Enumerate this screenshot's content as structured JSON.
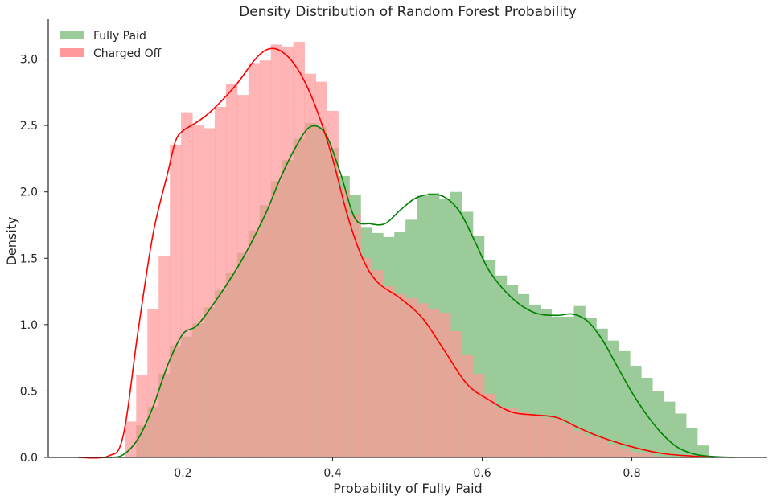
{
  "chart_data": {
    "type": "histogram",
    "title": "Density Distribution of Random Forest Probability",
    "xlabel": "Probability of Fully Paid",
    "ylabel": "Density",
    "xlim": [
      0.02,
      0.98
    ],
    "ylim": [
      0.0,
      3.3
    ],
    "xticks": [
      0.2,
      0.4,
      0.6,
      0.8
    ],
    "yticks": [
      0.0,
      0.5,
      1.0,
      1.5,
      2.0,
      2.5,
      3.0
    ],
    "xtick_labels": [
      "0.2",
      "0.4",
      "0.6",
      "0.8"
    ],
    "ytick_labels": [
      "0.0",
      "0.5",
      "1.0",
      "1.5",
      "2.0",
      "2.5",
      "3.0"
    ],
    "grid": false,
    "legend_position": "top-left",
    "bin_width": 0.015,
    "series": [
      {
        "name": "Fully Paid",
        "color": "#008000",
        "bar_color": "#9bcb98",
        "bins_start": 0.1375,
        "values": [
          0.24,
          0.38,
          0.63,
          0.84,
          0.91,
          1.01,
          1.13,
          1.26,
          1.39,
          1.54,
          1.71,
          1.9,
          2.08,
          2.24,
          2.4,
          2.52,
          2.49,
          2.33,
          2.12,
          1.98,
          1.73,
          1.69,
          1.66,
          1.7,
          1.79,
          1.97,
          1.99,
          1.95,
          2.0,
          1.85,
          1.67,
          1.49,
          1.37,
          1.3,
          1.23,
          1.15,
          1.12,
          1.06,
          1.06,
          1.14,
          1.05,
          0.97,
          0.88,
          0.8,
          0.69,
          0.6,
          0.5,
          0.42,
          0.33,
          0.22,
          0.09
        ],
        "kde_x": [
          0.06,
          0.1,
          0.12,
          0.14,
          0.16,
          0.18,
          0.2,
          0.22,
          0.25,
          0.28,
          0.31,
          0.33,
          0.35,
          0.37,
          0.39,
          0.41,
          0.43,
          0.45,
          0.47,
          0.49,
          0.51,
          0.53,
          0.55,
          0.57,
          0.59,
          0.61,
          0.64,
          0.67,
          0.7,
          0.72,
          0.74,
          0.76,
          0.78,
          0.8,
          0.82,
          0.84,
          0.86,
          0.88,
          0.9,
          0.935
        ],
        "kde_y": [
          0.0,
          0.0,
          0.02,
          0.14,
          0.38,
          0.7,
          0.93,
          1.0,
          1.23,
          1.5,
          1.83,
          2.1,
          2.33,
          2.49,
          2.44,
          2.15,
          1.8,
          1.76,
          1.76,
          1.86,
          1.95,
          1.98,
          1.96,
          1.85,
          1.63,
          1.4,
          1.2,
          1.09,
          1.07,
          1.08,
          1.03,
          0.89,
          0.69,
          0.49,
          0.32,
          0.18,
          0.08,
          0.03,
          0.01,
          0.0
        ]
      },
      {
        "name": "Charged Off",
        "color": "#ff0000",
        "bar_color": "#ff9899",
        "bins_start": 0.1225,
        "values": [
          0.27,
          0.62,
          1.12,
          1.52,
          2.35,
          2.6,
          2.5,
          2.48,
          2.64,
          2.81,
          2.73,
          2.97,
          2.99,
          3.11,
          3.09,
          3.13,
          2.89,
          2.83,
          2.61,
          2.02,
          1.83,
          1.5,
          1.41,
          1.29,
          1.23,
          1.2,
          1.16,
          1.12,
          1.09,
          0.95,
          0.77,
          0.63,
          0.48,
          0.37,
          0.37,
          0.34,
          0.32,
          0.3,
          0.29,
          0.25,
          0.2,
          0.16,
          0.14,
          0.1,
          0.07,
          0.04,
          0.03,
          0.01
        ],
        "kde_x": [
          0.06,
          0.1,
          0.12,
          0.14,
          0.16,
          0.18,
          0.19,
          0.2,
          0.22,
          0.24,
          0.27,
          0.3,
          0.32,
          0.34,
          0.36,
          0.38,
          0.4,
          0.42,
          0.44,
          0.46,
          0.49,
          0.52,
          0.55,
          0.58,
          0.61,
          0.64,
          0.67,
          0.7,
          0.73,
          0.76,
          0.8,
          0.84,
          0.88,
          0.91
        ],
        "kde_y": [
          0.0,
          0.01,
          0.16,
          0.95,
          1.68,
          2.15,
          2.38,
          2.46,
          2.53,
          2.62,
          2.8,
          3.02,
          3.08,
          3.02,
          2.86,
          2.6,
          2.25,
          1.82,
          1.5,
          1.32,
          1.2,
          1.05,
          0.8,
          0.55,
          0.43,
          0.34,
          0.32,
          0.3,
          0.22,
          0.15,
          0.08,
          0.03,
          0.01,
          0.0
        ]
      }
    ]
  }
}
